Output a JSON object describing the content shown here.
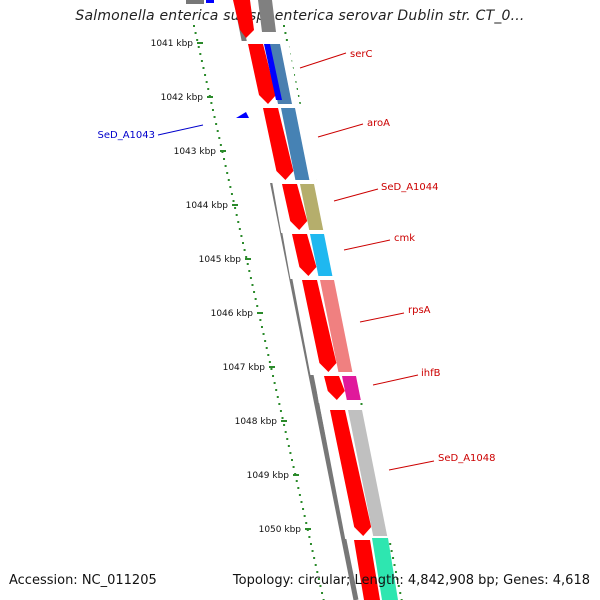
{
  "title": "Salmonella enterica subsp. enterica serovar Dublin str. CT_0...",
  "footer": {
    "accession": "Accession: NC_011205",
    "topology": "Topology: circular; Length: 4,842,908 bp; Genes: 4,618"
  },
  "colors": {
    "axis_ticks": "#2a8a2a",
    "cds_arrow": "#ff0000",
    "forward_label": "#cc0000",
    "reverse_label": "#0000cc",
    "backbone": "#777777"
  },
  "kbp_ticks": [
    "1041 kbp",
    "1042 kbp",
    "1043 kbp",
    "1044 kbp",
    "1045 kbp",
    "1046 kbp",
    "1047 kbp",
    "1048 kbp",
    "1049 kbp",
    "1050 kbp"
  ],
  "genes": [
    {
      "name": "serC",
      "strand": "forward",
      "color": "#4a7fb0"
    },
    {
      "name": "aroA",
      "strand": "forward",
      "color": "#4682b4"
    },
    {
      "name": "SeD_A1044",
      "strand": "forward",
      "color": "#b5ae6c"
    },
    {
      "name": "cmk",
      "strand": "forward",
      "color": "#1fb8f0"
    },
    {
      "name": "rpsA",
      "strand": "forward",
      "color": "#f08080"
    },
    {
      "name": "ihfB",
      "strand": "forward",
      "color": "#e0199b"
    },
    {
      "name": "SeD_A1048",
      "strand": "forward",
      "color": "#c0c0c0"
    },
    {
      "name": "SeD_A1043",
      "strand": "reverse",
      "color": "#0000ff"
    }
  ]
}
